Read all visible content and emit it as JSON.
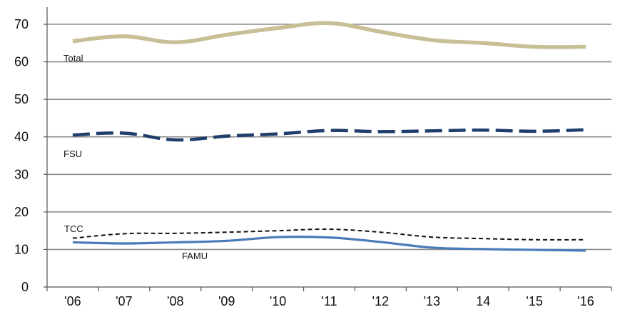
{
  "chart_data": {
    "type": "line",
    "title": "",
    "xlabel": "",
    "ylabel": "",
    "categories": [
      "'06",
      "'07",
      "'08",
      "'09",
      "'10",
      "'11",
      "'12",
      "'13",
      "14",
      "'15",
      "'16"
    ],
    "ylim": [
      0,
      70
    ],
    "yticks": [
      0,
      10,
      20,
      30,
      40,
      50,
      60,
      70
    ],
    "grid": true,
    "legend": "none (series labeled directly on chart)",
    "series": [
      {
        "name": "Total",
        "color": "#c9bf97",
        "line_style": "solid-thick",
        "values": [
          65.5,
          66.8,
          65.2,
          67.2,
          69.0,
          70.3,
          68.0,
          65.8,
          65.0,
          64.0,
          64.0
        ]
      },
      {
        "name": "FSU",
        "color": "#1f3e6b",
        "line_style": "long-dash",
        "values": [
          40.5,
          41.0,
          39.2,
          40.2,
          40.8,
          41.7,
          41.4,
          41.6,
          41.8,
          41.5,
          41.9
        ]
      },
      {
        "name": "TCC",
        "color": "#111111",
        "line_style": "short-dash",
        "values": [
          13.0,
          14.2,
          14.3,
          14.6,
          15.0,
          15.4,
          14.6,
          13.3,
          12.9,
          12.6,
          12.6
        ]
      },
      {
        "name": "FAMU",
        "color": "#4a7ab8",
        "line_style": "solid",
        "values": [
          11.9,
          11.6,
          11.9,
          12.3,
          13.3,
          13.2,
          12.0,
          10.5,
          10.1,
          9.9,
          9.7
        ]
      }
    ]
  }
}
